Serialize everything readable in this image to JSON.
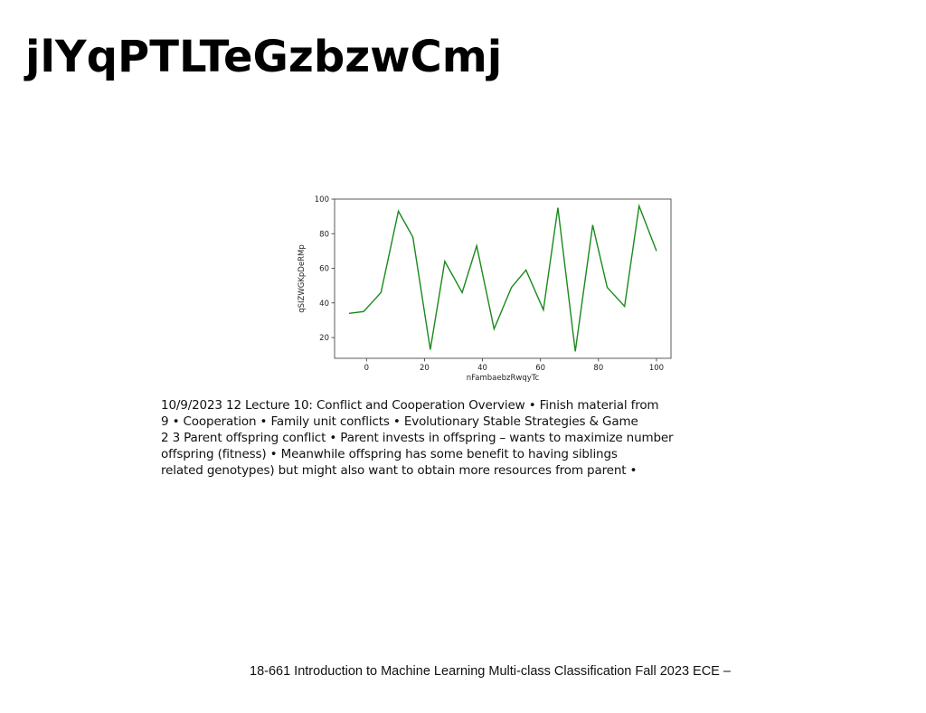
{
  "slide": {
    "title": "jlYqPTLTeGzbzwCmj",
    "body_lines": [
      "10/9/2023 12 Lecture 10: Conflict and Cooperation Overview • Finish material from",
      "9 • Cooperation • Family unit conflicts • Evolutionary Stable Strategies & Game",
      "2 3 Parent offspring conflict • Parent invests in offspring – wants to maximize number",
      "offspring (fitness) • Meanwhile offspring has some benefit to having siblings",
      "related genotypes) but might also want to obtain more resources from parent •"
    ],
    "footer": "18-661 Introduction to Machine Learning Multi-class Classification Fall 2023 ECE –"
  },
  "colors": {
    "line": "#1a8a1a",
    "axes": "#333333",
    "text": "#111111"
  },
  "chart_data": {
    "type": "line",
    "xlabel": "nFambaebzRwqyTc",
    "ylabel": "qSIZWGKpDeRMp",
    "xlim": [
      -11,
      105
    ],
    "ylim": [
      8,
      100
    ],
    "xticks": [
      0,
      20,
      40,
      60,
      80,
      100
    ],
    "yticks": [
      20,
      40,
      60,
      80,
      100
    ],
    "grid": false,
    "series": [
      {
        "x": [
          -6,
          -1,
          5,
          11,
          16,
          22,
          27,
          33,
          38,
          44,
          50,
          55,
          61,
          66,
          72,
          78,
          83,
          89,
          94,
          100
        ],
        "y": [
          34,
          35,
          46,
          93,
          78,
          13,
          64,
          46,
          73,
          25,
          49,
          59,
          36,
          95,
          12,
          85,
          49,
          38,
          96,
          70
        ]
      }
    ]
  }
}
